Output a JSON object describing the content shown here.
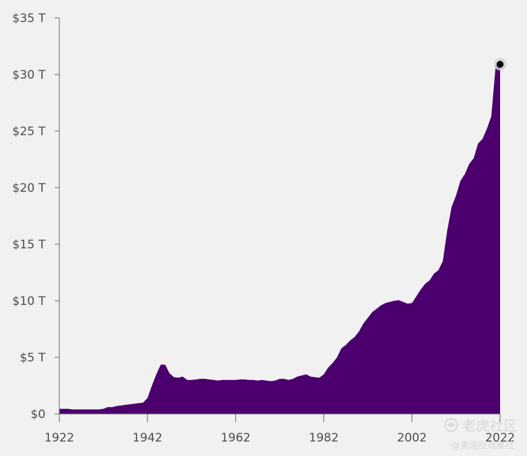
{
  "chart_data": {
    "type": "area",
    "title": "",
    "xlabel": "",
    "ylabel": "",
    "xlim": [
      1922,
      2022
    ],
    "ylim": [
      0,
      35
    ],
    "x_ticks": [
      1922,
      1942,
      1962,
      1982,
      2002,
      2022
    ],
    "x_tick_labels": [
      "1922",
      "1942",
      "1962",
      "1982",
      "2002",
      "2022"
    ],
    "y_ticks": [
      0,
      5,
      10,
      15,
      20,
      25,
      30,
      35
    ],
    "y_tick_labels": [
      "$0",
      "$5 T",
      "$10 T",
      "$15 T",
      "$20 T",
      "$25 T",
      "$30 T",
      "$35 T"
    ],
    "grid": false,
    "colors": {
      "area": "#4b006e",
      "endpoint": "#000000",
      "endpoint_halo": "#cfcfcf"
    },
    "endpoint": {
      "x": 2022,
      "y": 30.9
    },
    "series": [
      {
        "x": [
          1922,
          1923,
          1924,
          1925,
          1926,
          1927,
          1928,
          1929,
          1930,
          1931,
          1932,
          1933,
          1934,
          1935,
          1936,
          1937,
          1938,
          1939,
          1940,
          1941,
          1942,
          1943,
          1944,
          1945,
          1946,
          1947,
          1948,
          1949,
          1950,
          1951,
          1952,
          1953,
          1954,
          1955,
          1956,
          1957,
          1958,
          1959,
          1960,
          1961,
          1962,
          1963,
          1964,
          1965,
          1966,
          1967,
          1968,
          1969,
          1970,
          1971,
          1972,
          1973,
          1974,
          1975,
          1976,
          1977,
          1978,
          1979,
          1980,
          1981,
          1982,
          1983,
          1984,
          1985,
          1986,
          1987,
          1988,
          1989,
          1990,
          1991,
          1992,
          1993,
          1994,
          1995,
          1996,
          1997,
          1998,
          1999,
          2000,
          2001,
          2002,
          2003,
          2004,
          2005,
          2006,
          2007,
          2008,
          2009,
          2010,
          2011,
          2012,
          2013,
          2014,
          2015,
          2016,
          2017,
          2018,
          2019,
          2020,
          2021,
          2022
        ],
        "values": [
          0.45,
          0.45,
          0.45,
          0.4,
          0.4,
          0.4,
          0.4,
          0.4,
          0.4,
          0.4,
          0.45,
          0.6,
          0.6,
          0.7,
          0.75,
          0.8,
          0.85,
          0.9,
          0.95,
          1.0,
          1.4,
          2.5,
          3.5,
          4.35,
          4.35,
          3.6,
          3.25,
          3.2,
          3.3,
          3.0,
          3.0,
          3.05,
          3.1,
          3.1,
          3.05,
          3.0,
          2.95,
          3.0,
          3.0,
          3.0,
          3.0,
          3.05,
          3.05,
          3.0,
          3.0,
          2.95,
          3.0,
          2.95,
          2.9,
          2.95,
          3.1,
          3.1,
          3.0,
          3.1,
          3.3,
          3.4,
          3.5,
          3.3,
          3.25,
          3.2,
          3.5,
          4.1,
          4.5,
          5.0,
          5.8,
          6.1,
          6.5,
          6.8,
          7.3,
          8.0,
          8.5,
          9.0,
          9.3,
          9.6,
          9.8,
          9.9,
          10.0,
          10.05,
          9.9,
          9.75,
          9.8,
          10.4,
          11.0,
          11.5,
          11.8,
          12.4,
          12.7,
          13.5,
          16.2,
          18.3,
          19.3,
          20.6,
          21.2,
          22.1,
          22.6,
          23.9,
          24.3,
          25.2,
          26.3,
          30.8,
          30.9
        ]
      }
    ]
  },
  "watermark": {
    "brand": "老虎社区",
    "handle": "@美港股观察社"
  }
}
